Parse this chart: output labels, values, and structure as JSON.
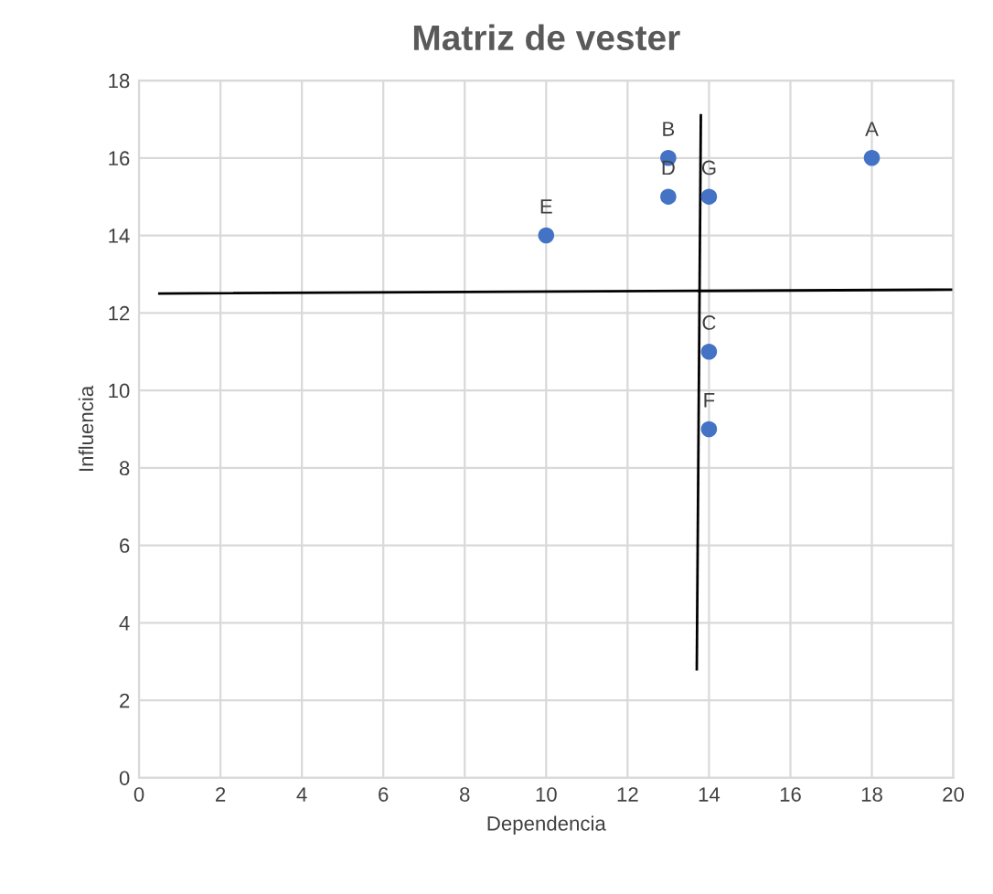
{
  "chart_data": {
    "type": "scatter",
    "title": "Matriz de vester",
    "xlabel": "Dependencia",
    "ylabel": "Influencia",
    "series": [
      {
        "color": "#4472c4",
        "marker": "circle",
        "x": [
          18,
          13,
          14,
          13,
          10,
          14,
          14
        ],
        "values": [
          16,
          16,
          11,
          15,
          14,
          9,
          15
        ]
      },
      {
        "type": "line",
        "color": "#000000",
        "x": [
          0.5,
          20
        ],
        "values": [
          12.5,
          12.6
        ]
      },
      {
        "type": "line",
        "color": "#000000",
        "x": [
          13.8,
          13.7
        ],
        "values": [
          17.1,
          2.8
        ]
      }
    ],
    "annotations": [
      {
        "text": "A",
        "x": 18,
        "y": 16
      },
      {
        "text": "B",
        "x": 13,
        "y": 16
      },
      {
        "text": "C",
        "x": 14,
        "y": 11
      },
      {
        "text": "D",
        "x": 13,
        "y": 15
      },
      {
        "text": "E",
        "x": 10,
        "y": 14
      },
      {
        "text": "F",
        "x": 14,
        "y": 9
      },
      {
        "text": "G",
        "x": 14,
        "y": 15
      }
    ],
    "xlim": [
      0,
      20
    ],
    "xticks": [
      0,
      2,
      4,
      6,
      8,
      10,
      12,
      14,
      16,
      18,
      20
    ],
    "ylim": [
      0,
      18
    ],
    "yticks": [
      0,
      2,
      4,
      6,
      8,
      10,
      12,
      14,
      16,
      18
    ],
    "grid": true
  }
}
